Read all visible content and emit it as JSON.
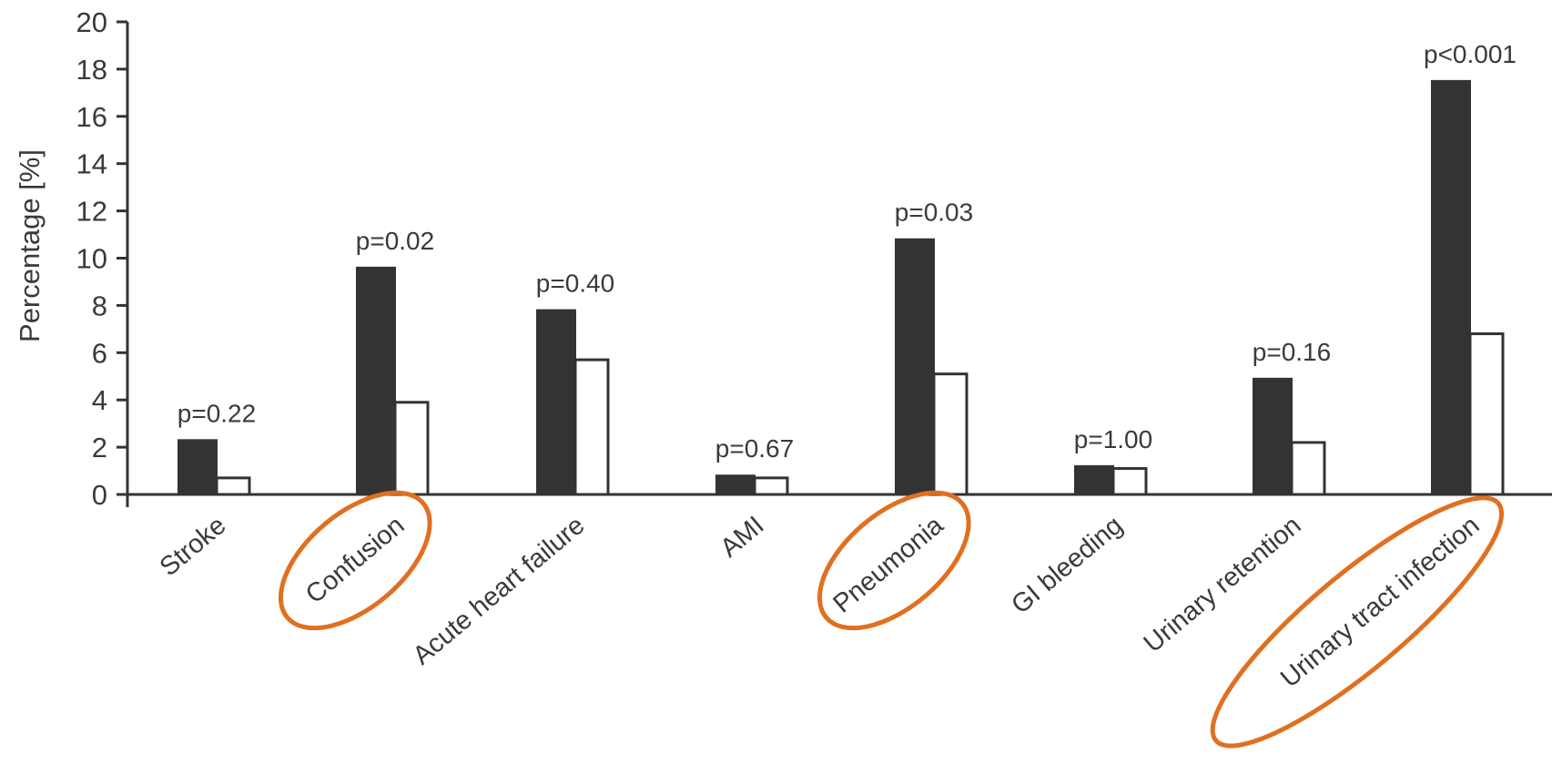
{
  "chart_data": {
    "type": "bar",
    "title": "",
    "xlabel": "",
    "ylabel": "Percentage [%]",
    "ylim": [
      0,
      20
    ],
    "yticks": [
      0,
      2,
      4,
      6,
      8,
      10,
      12,
      14,
      16,
      18,
      20
    ],
    "grid": false,
    "legend": "none",
    "categories": [
      "Stroke",
      "Confusion",
      "Acute heart failure",
      "AMI",
      "Pneumonia",
      "GI bleeding",
      "Urinary retention",
      "Urinary tract infection"
    ],
    "series": [
      {
        "values": [
          2.3,
          9.6,
          7.8,
          0.8,
          10.8,
          1.2,
          4.9,
          17.5
        ],
        "color": "#333333"
      },
      {
        "values": [
          0.7,
          3.9,
          5.7,
          0.7,
          5.1,
          1.1,
          2.2,
          6.8
        ],
        "color": "#ffffff"
      }
    ],
    "p_values": [
      "p=0.22",
      "p=0.02",
      "p=0.40",
      "p=0.67",
      "p=0.03",
      "p=1.00",
      "p=0.16",
      "p<0.001"
    ],
    "highlighted_categories": [
      "Confusion",
      "Pneumonia",
      "Urinary tract infection"
    ],
    "highlight_color": "#e07020"
  }
}
